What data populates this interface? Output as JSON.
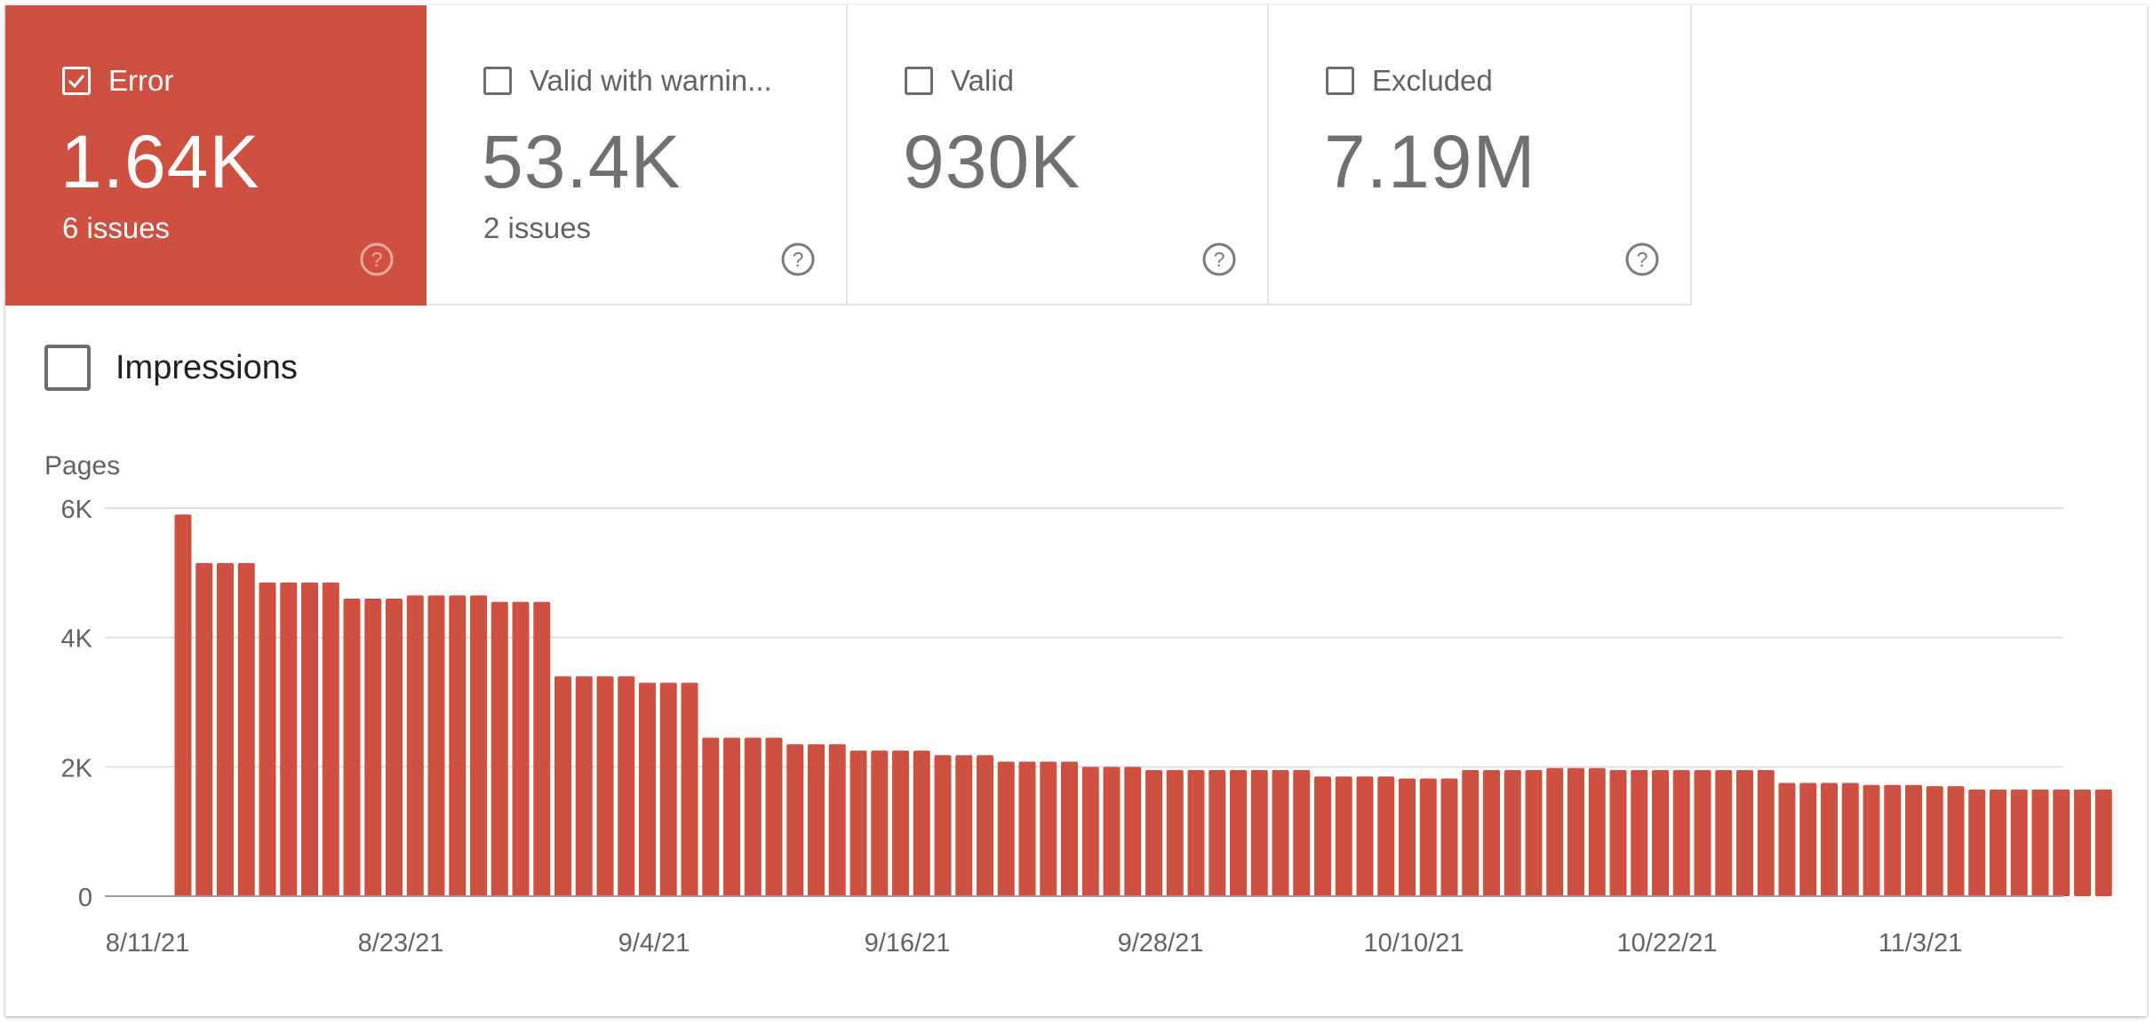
{
  "cards": [
    {
      "label": "Error",
      "value": "1.64K",
      "sub": "6 issues",
      "checked": true,
      "active": true
    },
    {
      "label": "Valid with warnin...",
      "value": "53.4K",
      "sub": "2 issues",
      "checked": false,
      "active": false
    },
    {
      "label": "Valid",
      "value": "930K",
      "sub": "",
      "checked": false,
      "active": false
    },
    {
      "label": "Excluded",
      "value": "7.19M",
      "sub": "",
      "checked": false,
      "active": false
    }
  ],
  "impressions": {
    "label": "Impressions",
    "checked": false
  },
  "colors": {
    "accent": "#cd5040",
    "bar": "#cd5040",
    "grid": "#e0e0e0",
    "axis_text": "#5f6368"
  },
  "chart_data": {
    "type": "bar",
    "ylabel": "Pages",
    "ylim": [
      0,
      6000
    ],
    "yticks": [
      0,
      2000,
      4000,
      6000
    ],
    "ytick_labels": [
      "0",
      "2K",
      "4K",
      "6K"
    ],
    "xtick_labels": [
      "8/11/21",
      "8/23/21",
      "9/4/21",
      "9/16/21",
      "9/28/21",
      "10/10/21",
      "10/22/21",
      "11/3/21"
    ],
    "start_date": "8/11/21",
    "grid": true,
    "series": [
      {
        "values": [
          5900,
          5150,
          5150,
          5150,
          4850,
          4850,
          4850,
          4850,
          4600,
          4600,
          4600,
          4650,
          4650,
          4650,
          4650,
          4550,
          4550,
          4550,
          3400,
          3400,
          3400,
          3400,
          3300,
          3300,
          3300,
          2450,
          2450,
          2450,
          2450,
          2350,
          2350,
          2350,
          2250,
          2250,
          2250,
          2250,
          2180,
          2180,
          2180,
          2080,
          2080,
          2080,
          2080,
          2000,
          2000,
          2000,
          1950,
          1950,
          1950,
          1950,
          1950,
          1950,
          1950,
          1950,
          1850,
          1850,
          1850,
          1850,
          1820,
          1820,
          1820,
          1950,
          1950,
          1950,
          1950,
          1980,
          1980,
          1980,
          1950,
          1950,
          1950,
          1950,
          1950,
          1950,
          1950,
          1950,
          1750,
          1750,
          1750,
          1750,
          1720,
          1720,
          1720,
          1700,
          1700,
          1650,
          1650,
          1650,
          1650,
          1650,
          1650,
          1650
        ]
      }
    ]
  }
}
